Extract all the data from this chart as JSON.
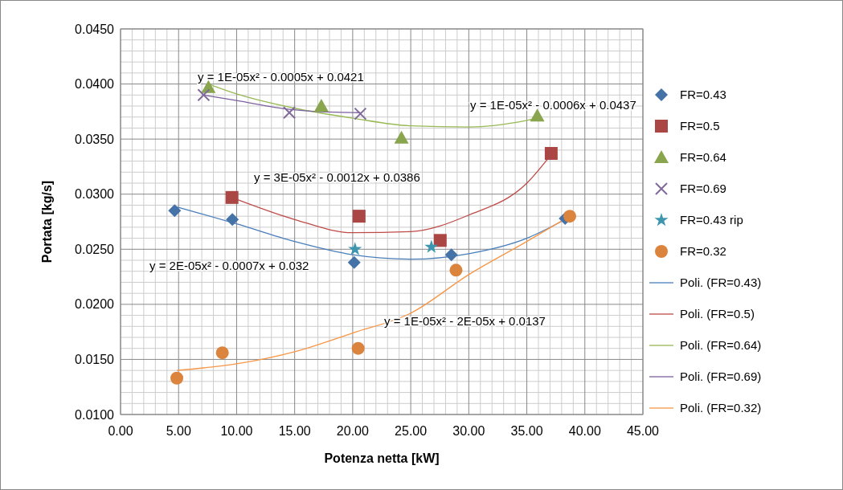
{
  "chart_data": {
    "type": "scatter",
    "xlabel": "Potenza netta [kW]",
    "ylabel": "Portata [kg/s]",
    "xlim": [
      0,
      45
    ],
    "ylim": [
      0.01,
      0.045
    ],
    "xticks": [
      {
        "value": 0,
        "label": "0.00"
      },
      {
        "value": 5,
        "label": "5.00"
      },
      {
        "value": 10,
        "label": "10.00"
      },
      {
        "value": 15,
        "label": "15.00"
      },
      {
        "value": 20,
        "label": "20.00"
      },
      {
        "value": 25,
        "label": "25.00"
      },
      {
        "value": 30,
        "label": "30.00"
      },
      {
        "value": 35,
        "label": "35.00"
      },
      {
        "value": 40,
        "label": "40.00"
      },
      {
        "value": 45,
        "label": "45.00"
      }
    ],
    "yticks": [
      {
        "value": 0.01,
        "label": "0.0100"
      },
      {
        "value": 0.015,
        "label": "0.0150"
      },
      {
        "value": 0.02,
        "label": "0.0200"
      },
      {
        "value": 0.025,
        "label": "0.0250"
      },
      {
        "value": 0.03,
        "label": "0.0300"
      },
      {
        "value": 0.035,
        "label": "0.0350"
      },
      {
        "value": 0.04,
        "label": "0.0400"
      },
      {
        "value": 0.045,
        "label": "0.0450"
      }
    ],
    "grid": true,
    "legend": "right",
    "series": [
      {
        "name": "FR=0.43",
        "marker": "diamond",
        "color": "#4572a7",
        "x": [
          4.66,
          9.63,
          20.13,
          28.5,
          38.3
        ],
        "values": [
          0.0285,
          0.0277,
          0.0238,
          0.0245,
          0.0278
        ]
      },
      {
        "name": "FR=0.5",
        "marker": "square",
        "color": "#aa4643",
        "x": [
          9.6,
          20.55,
          27.54,
          37.1
        ],
        "values": [
          0.0297,
          0.028,
          0.0258,
          0.0337
        ]
      },
      {
        "name": "FR=0.64",
        "marker": "triangle",
        "color": "#89a54e",
        "x": [
          7.57,
          17.3,
          24.2,
          35.9
        ],
        "values": [
          0.0397,
          0.038,
          0.0351,
          0.0371
        ]
      },
      {
        "name": "FR=0.69",
        "marker": "cross",
        "color": "#80699b",
        "x": [
          7.16,
          14.54,
          20.66
        ],
        "values": [
          0.039,
          0.0374,
          0.0373
        ]
      },
      {
        "name": "FR=0.43 rip",
        "marker": "star",
        "color": "#3d96ae",
        "x": [
          20.2,
          26.78
        ],
        "values": [
          0.025,
          0.0252
        ]
      },
      {
        "name": "FR=0.32",
        "marker": "circle",
        "color": "#db843d",
        "x": [
          4.85,
          8.77,
          20.47,
          28.9,
          38.7
        ],
        "values": [
          0.0133,
          0.0156,
          0.016,
          0.0231,
          0.028
        ]
      },
      {
        "name": "Poli. (FR=0.43)",
        "type": "line",
        "marker": "none",
        "color": "#4a7ebb",
        "x": [
          4.66,
          10,
          15,
          20,
          25,
          30,
          35,
          38.3
        ],
        "values": [
          0.0289,
          0.0273,
          0.0257,
          0.0245,
          0.0241,
          0.0246,
          0.026,
          0.0277
        ]
      },
      {
        "name": "Poli. (FR=0.5)",
        "type": "line",
        "marker": "none",
        "color": "#be4b48",
        "x": [
          9.6,
          15,
          20,
          25,
          30,
          35,
          37.1
        ],
        "values": [
          0.0297,
          0.0277,
          0.0265,
          0.0266,
          0.0281,
          0.031,
          0.0336
        ]
      },
      {
        "name": "Poli. (FR=0.64)",
        "type": "line",
        "marker": "none",
        "color": "#98b954",
        "x": [
          7.57,
          10,
          15,
          20,
          25,
          30,
          35,
          35.9
        ],
        "values": [
          0.04,
          0.0391,
          0.0378,
          0.0369,
          0.0362,
          0.0361,
          0.0367,
          0.0369
        ]
      },
      {
        "name": "Poli. (FR=0.69)",
        "type": "line",
        "marker": "none",
        "color": "#7d60a0",
        "x": [
          7.16,
          10,
          14.54,
          17,
          20.66
        ],
        "values": [
          0.039,
          0.0385,
          0.0377,
          0.0375,
          0.0374
        ]
      },
      {
        "name": "Poli. (FR=0.32)",
        "type": "line",
        "marker": "none",
        "color": "#f79646",
        "x": [
          4.85,
          10,
          15,
          20,
          25,
          30,
          35,
          38.7
        ],
        "values": [
          0.014,
          0.0146,
          0.0157,
          0.0174,
          0.0192,
          0.0227,
          0.0257,
          0.028
        ]
      }
    ],
    "annotations": [
      "y = 1E-05x² - 0.0005x + 0.0421",
      "y = 1E-05x² - 0.0006x + 0.0437",
      "y = 3E-05x² - 0.0012x + 0.0386",
      "y = 2E-05x² - 0.0007x + 0.032",
      "y = 1E-05x² - 2E-05x + 0.0137"
    ]
  }
}
